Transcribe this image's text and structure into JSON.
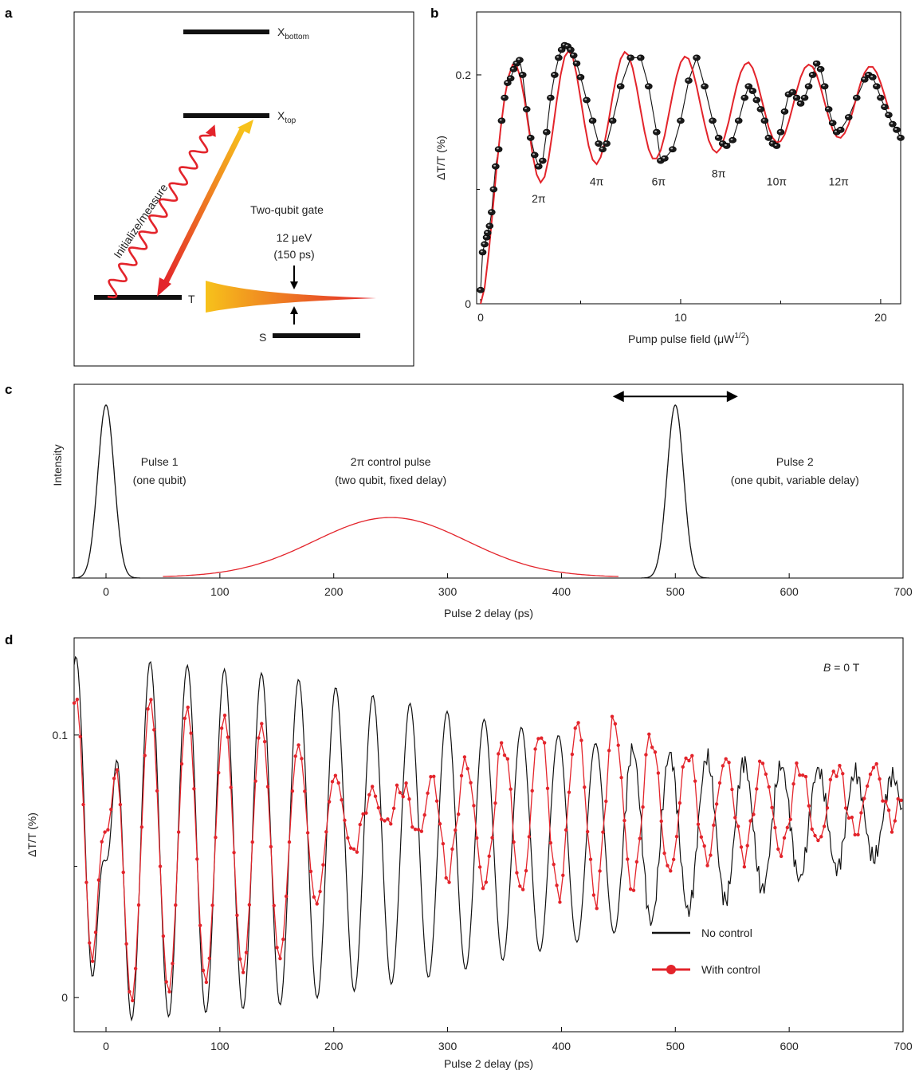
{
  "panels": {
    "a": {
      "letter": "a",
      "levels": [
        {
          "id": "x-bottom",
          "main": "X",
          "sub": "bottom"
        },
        {
          "id": "x-top",
          "main": "X",
          "sub": "top"
        },
        {
          "id": "t",
          "main": "T",
          "sub": ""
        },
        {
          "id": "s",
          "main": "S",
          "sub": ""
        }
      ],
      "wavy_label": "Initialize/measure",
      "gate_title": "Two-qubit gate",
      "gate_energy": "12 μeV",
      "gate_time": "(150 ps)",
      "colors": {
        "wave": "#e3242b",
        "arrow_start": "#f7c21b",
        "arrow_end": "#e3242b"
      }
    },
    "b": {
      "letter": "b"
    },
    "c": {
      "letter": "c"
    },
    "d": {
      "letter": "d"
    }
  },
  "chart_data": [
    {
      "panel": "b",
      "type": "scatter",
      "xlabel": "Pump pulse field (μW",
      "xlabel_sup": "1/2",
      "xlabel_tail": ")",
      "ylabel": "ΔT/T (%)",
      "xlim": [
        -0.2,
        21
      ],
      "ylim": [
        0,
        0.255
      ],
      "xticks": [
        {
          "v": 0,
          "label": "0"
        },
        {
          "v": 10,
          "label": "10"
        },
        {
          "v": 20,
          "label": "20"
        }
      ],
      "xminor": [
        5,
        15
      ],
      "yticks": [
        {
          "v": 0,
          "label": "0"
        },
        {
          "v": 0.2,
          "label": "0.2"
        }
      ],
      "yminor": [
        0.1
      ],
      "fit": {
        "name": "fit",
        "color": "#e3242b",
        "x": [
          0,
          0.2,
          0.4,
          0.6,
          0.8,
          1.0,
          1.2,
          1.4,
          1.6,
          1.8,
          2.0,
          2.2,
          2.4,
          2.6,
          2.8,
          3.0,
          3.2,
          3.4,
          3.6,
          3.8,
          4.0,
          4.2,
          4.4,
          4.6,
          4.8,
          5.0,
          5.2,
          5.4,
          5.6,
          5.8,
          6.0,
          6.2,
          6.4,
          6.6,
          6.8,
          7.0,
          7.2,
          7.4,
          7.6,
          7.8,
          8.0,
          8.2,
          8.4,
          8.6,
          8.8,
          9.0,
          9.2,
          9.4,
          9.6,
          9.8,
          10.0,
          10.2,
          10.4,
          10.6,
          10.8,
          11.0,
          11.2,
          11.4,
          11.6,
          11.8,
          12.0,
          12.2,
          12.4,
          12.6,
          12.8,
          13.0,
          13.2,
          13.4,
          13.6,
          13.8,
          14.0,
          14.2,
          14.4,
          14.6,
          14.8,
          15.0,
          15.2,
          15.4,
          15.6,
          15.8,
          16.0,
          16.2,
          16.4,
          16.6,
          16.8,
          17.0,
          17.2,
          17.4,
          17.6,
          17.8,
          18.0,
          18.2,
          18.4,
          18.6,
          18.8,
          19.0,
          19.2,
          19.4,
          19.6,
          19.8,
          20.0,
          20.2,
          20.4
        ],
        "y": [
          0.0,
          0.014,
          0.044,
          0.081,
          0.119,
          0.153,
          0.18,
          0.199,
          0.209,
          0.208,
          0.197,
          0.178,
          0.154,
          0.13,
          0.113,
          0.106,
          0.111,
          0.127,
          0.151,
          0.177,
          0.2,
          0.216,
          0.221,
          0.216,
          0.2,
          0.179,
          0.157,
          0.138,
          0.126,
          0.122,
          0.128,
          0.141,
          0.16,
          0.181,
          0.2,
          0.214,
          0.22,
          0.217,
          0.206,
          0.189,
          0.169,
          0.15,
          0.135,
          0.127,
          0.127,
          0.134,
          0.147,
          0.165,
          0.183,
          0.199,
          0.211,
          0.216,
          0.214,
          0.204,
          0.19,
          0.173,
          0.157,
          0.143,
          0.135,
          0.132,
          0.136,
          0.146,
          0.159,
          0.175,
          0.19,
          0.202,
          0.209,
          0.211,
          0.206,
          0.196,
          0.182,
          0.168,
          0.154,
          0.145,
          0.141,
          0.142,
          0.148,
          0.159,
          0.172,
          0.186,
          0.198,
          0.206,
          0.209,
          0.207,
          0.2,
          0.189,
          0.176,
          0.163,
          0.152,
          0.146,
          0.145,
          0.149,
          0.157,
          0.168,
          0.181,
          0.193,
          0.202,
          0.207,
          0.207,
          0.202,
          0.193,
          0.182,
          0.17
        ]
      },
      "data": {
        "name": "data",
        "color": "#111111",
        "x": [
          0.0,
          0.1,
          0.2,
          0.3,
          0.35,
          0.45,
          0.55,
          0.65,
          0.75,
          0.9,
          1.05,
          1.2,
          1.35,
          1.5,
          1.65,
          1.8,
          1.95,
          2.1,
          2.3,
          2.5,
          2.7,
          2.9,
          3.1,
          3.3,
          3.5,
          3.7,
          3.9,
          4.05,
          4.2,
          4.35,
          4.5,
          4.65,
          4.8,
          5.0,
          5.3,
          5.6,
          5.9,
          6.1,
          6.3,
          6.6,
          7.0,
          7.5,
          8.0,
          8.4,
          8.8,
          9.0,
          9.2,
          9.6,
          10.0,
          10.4,
          10.8,
          11.2,
          11.6,
          11.9,
          12.1,
          12.3,
          12.6,
          12.9,
          13.2,
          13.4,
          13.6,
          13.8,
          14.0,
          14.2,
          14.4,
          14.6,
          14.8,
          15.0,
          15.2,
          15.4,
          15.6,
          15.8,
          16.0,
          16.2,
          16.4,
          16.6,
          16.8,
          17.0,
          17.2,
          17.4,
          17.6,
          17.8,
          18.0,
          18.4,
          18.8,
          19.2,
          19.4,
          19.6,
          19.8,
          20.0,
          20.2,
          20.4,
          20.6,
          20.8,
          21.0
        ],
        "y": [
          0.012,
          0.045,
          0.052,
          0.058,
          0.062,
          0.068,
          0.08,
          0.1,
          0.12,
          0.135,
          0.16,
          0.18,
          0.193,
          0.197,
          0.205,
          0.21,
          0.213,
          0.2,
          0.17,
          0.145,
          0.13,
          0.12,
          0.125,
          0.15,
          0.18,
          0.2,
          0.215,
          0.222,
          0.226,
          0.225,
          0.222,
          0.217,
          0.21,
          0.198,
          0.178,
          0.16,
          0.14,
          0.135,
          0.14,
          0.16,
          0.19,
          0.215,
          0.215,
          0.19,
          0.15,
          0.125,
          0.127,
          0.135,
          0.16,
          0.195,
          0.215,
          0.19,
          0.16,
          0.145,
          0.14,
          0.138,
          0.143,
          0.16,
          0.18,
          0.19,
          0.186,
          0.178,
          0.17,
          0.16,
          0.145,
          0.14,
          0.138,
          0.15,
          0.168,
          0.183,
          0.185,
          0.18,
          0.175,
          0.18,
          0.19,
          0.2,
          0.21,
          0.205,
          0.19,
          0.17,
          0.158,
          0.15,
          0.152,
          0.163,
          0.18,
          0.196,
          0.2,
          0.198,
          0.19,
          0.18,
          0.172,
          0.165,
          0.157,
          0.152,
          0.145
        ]
      },
      "annotations": [
        {
          "text": "2π",
          "x": 2.9,
          "y": 0.092
        },
        {
          "text": "4π",
          "x": 5.8,
          "y": 0.107
        },
        {
          "text": "6π",
          "x": 8.9,
          "y": 0.107
        },
        {
          "text": "8π",
          "x": 11.9,
          "y": 0.114
        },
        {
          "text": "10π",
          "x": 14.8,
          "y": 0.107
        },
        {
          "text": "12π",
          "x": 17.9,
          "y": 0.107
        }
      ]
    },
    {
      "panel": "c",
      "type": "line",
      "xlabel": "Pulse 2 delay (ps)",
      "ylabel": "Intensity",
      "xlim": [
        -28,
        700
      ],
      "ylim": [
        0,
        1.12
      ],
      "xticks": [
        {
          "v": 0,
          "label": "0"
        },
        {
          "v": 100,
          "label": "100"
        },
        {
          "v": 200,
          "label": "200"
        },
        {
          "v": 300,
          "label": "300"
        },
        {
          "v": 400,
          "label": "400"
        },
        {
          "v": 500,
          "label": "500"
        },
        {
          "v": 600,
          "label": "600"
        },
        {
          "v": 700,
          "label": "700"
        }
      ],
      "series": [
        {
          "name": "Pulse 1",
          "color": "#111111",
          "x": [
            -30,
            -25,
            -20,
            -15,
            -10,
            -8,
            -6,
            -4,
            -2,
            0,
            2,
            4,
            6,
            8,
            10,
            15,
            20,
            25,
            30
          ],
          "y": [
            0.0,
            0.003,
            0.02,
            0.1,
            0.35,
            0.5,
            0.67,
            0.83,
            0.95,
            1.0,
            0.95,
            0.83,
            0.67,
            0.5,
            0.35,
            0.1,
            0.02,
            0.003,
            0.0
          ]
        },
        {
          "name": "2π control pulse",
          "color": "#e3242b",
          "x": [
            50,
            75,
            100,
            125,
            150,
            175,
            200,
            225,
            250,
            275,
            300,
            325,
            350,
            375,
            400,
            425,
            450
          ],
          "y": [
            0.008,
            0.015,
            0.03,
            0.06,
            0.11,
            0.18,
            0.26,
            0.32,
            0.345,
            0.32,
            0.26,
            0.18,
            0.11,
            0.06,
            0.03,
            0.015,
            0.008
          ]
        },
        {
          "name": "Pulse 2",
          "color": "#111111",
          "x": [
            470,
            475,
            480,
            485,
            490,
            492,
            494,
            496,
            498,
            500,
            502,
            504,
            506,
            508,
            510,
            515,
            520,
            525,
            530
          ],
          "y": [
            0.0,
            0.003,
            0.02,
            0.1,
            0.35,
            0.5,
            0.67,
            0.83,
            0.95,
            1.0,
            0.95,
            0.83,
            0.67,
            0.5,
            0.35,
            0.1,
            0.02,
            0.003,
            0.0
          ]
        }
      ],
      "annotations": [
        {
          "line1": "Pulse 1",
          "line2": "(one qubit)",
          "x": 47,
          "y": 0.88
        },
        {
          "line1": "2π control pulse",
          "line2": "(two qubit, fixed delay)",
          "x": 250,
          "y": 0.88
        },
        {
          "line1": "Pulse 2",
          "line2": "(one qubit, variable delay)",
          "x": 605,
          "y": 0.88
        }
      ],
      "double_arrow": {
        "x1": 445,
        "x2": 555,
        "y": 1.05
      }
    },
    {
      "panel": "d",
      "type": "line",
      "xlabel": "Pulse 2 delay (ps)",
      "ylabel": "ΔT/T (%)",
      "xlim": [
        -28,
        700
      ],
      "ylim": [
        -0.013,
        0.137
      ],
      "xticks": [
        {
          "v": 0,
          "label": "0"
        },
        {
          "v": 100,
          "label": "100"
        },
        {
          "v": 200,
          "label": "200"
        },
        {
          "v": 300,
          "label": "300"
        },
        {
          "v": 400,
          "label": "400"
        },
        {
          "v": 500,
          "label": "500"
        },
        {
          "v": 600,
          "label": "600"
        },
        {
          "v": 700,
          "label": "700"
        }
      ],
      "yticks": [
        {
          "v": 0,
          "label": "0"
        },
        {
          "v": 0.1,
          "label": "0.1"
        }
      ],
      "yminor": [
        0.05
      ],
      "field_label_var": "B",
      "field_label_rest": " = 0 T",
      "legend": {
        "position": "bottom-right",
        "entries": [
          {
            "name": "No control",
            "color": "#111111",
            "marker": false
          },
          {
            "name": "With control",
            "color": "#e3242b",
            "marker": true
          }
        ]
      },
      "model": {
        "period_ps": 32.6,
        "no_control": {
          "envelope_t": [
            -28,
            0,
            40,
            150,
            300,
            450,
            600,
            700
          ],
          "center": [
            0.06,
            0.06,
            0.06,
            0.06,
            0.059,
            0.06,
            0.066,
            0.07
          ],
          "amplitude": [
            0.07,
            0.07,
            0.068,
            0.063,
            0.05,
            0.035,
            0.022,
            0.014
          ],
          "phase_offset": 0.19
        },
        "with_control": {
          "envelope_t": [
            -28,
            0,
            40,
            150,
            220,
            260,
            300,
            360,
            440,
            520,
            600,
            700
          ],
          "center": [
            0.055,
            0.055,
            0.057,
            0.058,
            0.068,
            0.075,
            0.066,
            0.07,
            0.072,
            0.072,
            0.072,
            0.078
          ],
          "amplitude": [
            0.06,
            0.06,
            0.057,
            0.045,
            0.01,
            0.005,
            0.02,
            0.03,
            0.035,
            0.02,
            0.016,
            0.01
          ],
          "phase_offset": 0.19,
          "phase_shift_start": 230,
          "phase_shift_end": 300,
          "phase_shift": 3.14159
        },
        "early_dip": {
          "t": 0,
          "no_control": 0.052,
          "with_control": 0.063
        }
      }
    }
  ]
}
